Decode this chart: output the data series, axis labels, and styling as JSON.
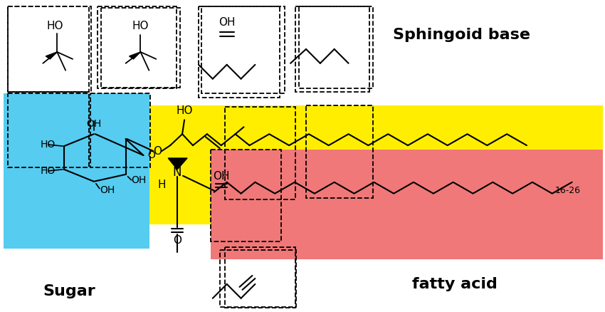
{
  "background_color": "#ffffff",
  "sugar_box_color": "#55ccf0",
  "sphingoid_box_color": "#ffee00",
  "fatty_acid_box_color": "#f07878",
  "label_sugar": "Sugar",
  "label_sphingoid": "Sphingoid base",
  "label_fatty": "fatty acid",
  "label_1626": "16-26"
}
